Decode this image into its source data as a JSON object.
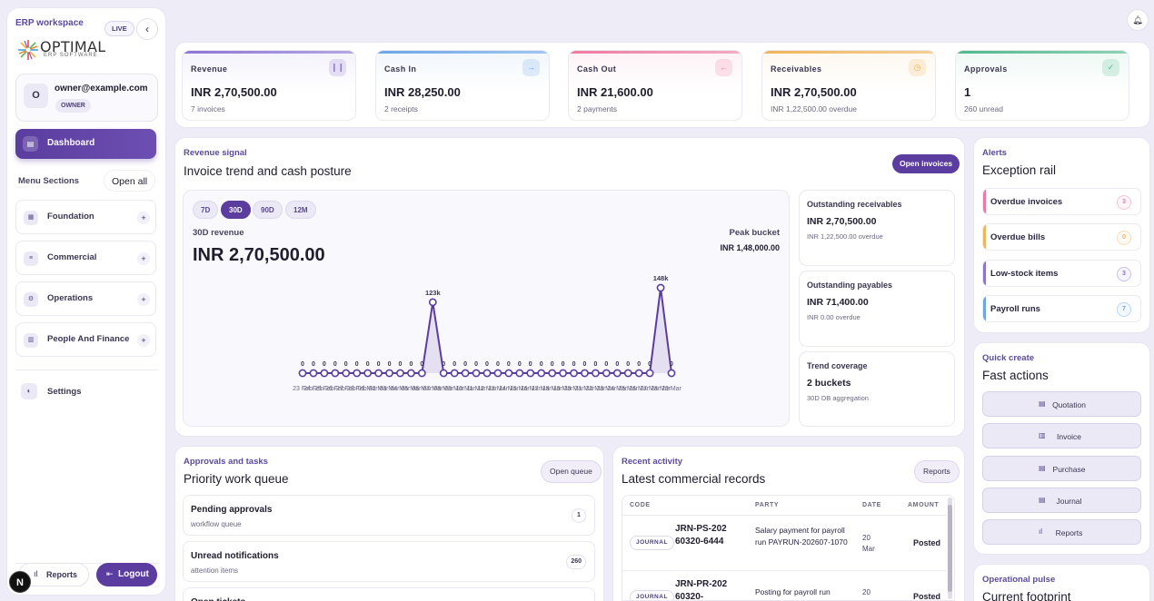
{
  "sidebar": {
    "workspace_label": "ERP workspace",
    "live_badge": "LIVE",
    "logo_text": "OPTIMAL",
    "logo_sub": "ERP SOFTWARE",
    "user": {
      "avatar": "O",
      "email": "owner@example.com",
      "role": "OWNER"
    },
    "active_item": "Dashboard",
    "menu_sections_label": "Menu Sections",
    "open_all_label": "Open all",
    "sections": [
      {
        "label": "Foundation",
        "icon": "grid-icon"
      },
      {
        "label": "Commercial",
        "icon": "list-icon"
      },
      {
        "label": "Operations",
        "icon": "gear-icon"
      },
      {
        "label": "People And Finance",
        "icon": "ledger-icon"
      }
    ],
    "settings_label": "Settings",
    "reports_label": "Reports",
    "logout_label": "Logout",
    "n_badge": "N"
  },
  "kpis": [
    {
      "title": "Revenue",
      "value": "INR 2,70,500.00",
      "sub": "7 invoices",
      "accent": "#8a74d6",
      "icon": "chart-icon",
      "glyph": "❙❙"
    },
    {
      "title": "Cash In",
      "value": "INR 28,250.00",
      "sub": "2 receipts",
      "accent": "#6aa6e8",
      "icon": "arrow-right-icon",
      "glyph": "→"
    },
    {
      "title": "Cash Out",
      "value": "INR 21,600.00",
      "sub": "2 payments",
      "accent": "#ee7aa0",
      "icon": "arrow-left-icon",
      "glyph": "←"
    },
    {
      "title": "Receivables",
      "value": "INR 2,70,500.00",
      "sub": "INR 1,22,500.00 overdue",
      "accent": "#f0b45a",
      "icon": "clock-icon",
      "glyph": "◷"
    },
    {
      "title": "Approvals",
      "value": "1",
      "sub": "260 unread",
      "accent": "#4fb98c",
      "icon": "check-icon",
      "glyph": "✓"
    }
  ],
  "revenue": {
    "eyebrow": "Revenue signal",
    "title": "Invoice trend and cash posture",
    "open_invoices_label": "Open invoices",
    "ranges": [
      "7D",
      "30D",
      "90D",
      "12M"
    ],
    "active_range": "30D",
    "metric_label": "30D revenue",
    "metric_value": "INR 2,70,500.00",
    "peak_label": "Peak bucket",
    "peak_value": "INR 1,48,000.00"
  },
  "chart_data": {
    "type": "line",
    "x": [
      "23 Feb",
      "24 Feb",
      "25 Feb",
      "26 Feb",
      "27 Feb",
      "28 Feb",
      "01 Mar",
      "02 Mar",
      "03 Mar",
      "04 Mar",
      "05 Mar",
      "06 Mar",
      "07 Mar",
      "08 Mar",
      "09 Mar",
      "10 Mar",
      "11 Mar",
      "12 Mar",
      "13 Mar",
      "14 Mar",
      "15 Mar",
      "16 Mar",
      "17 Mar",
      "18 Mar",
      "19 Mar",
      "20 Mar",
      "21 Mar",
      "22 Mar",
      "23 Mar",
      "24 Mar",
      "25 Mar",
      "26 Mar",
      "27 Mar",
      "28 Mar",
      "29 Mar"
    ],
    "x_tick_labels": [
      "23 Feb",
      "24 Feb",
      "25 Feb",
      "26 Feb",
      "27 Feb",
      "28 Feb",
      "01 Mar",
      "02 Mar",
      "03 Mar",
      "04 Mar",
      "05 Mar",
      "06 Mar",
      "07 Mar",
      "08 Mar",
      "09 Mar",
      "10 Mar",
      "11 Mar",
      "12 Mar",
      "13 Mar",
      "14 Mar",
      "15 Mar",
      "16 Mar",
      "17 Mar",
      "18 Mar",
      "19 Mar",
      "20 Mar",
      "21 Mar",
      "22 Mar",
      "23 Mar",
      "24 Mar",
      "25 Mar",
      "26 Mar",
      "27 Mar",
      "28 Mar",
      "29 Mar"
    ],
    "values": [
      0,
      0,
      0,
      0,
      0,
      0,
      0,
      0,
      0,
      0,
      0,
      0,
      123,
      0,
      0,
      0,
      0,
      0,
      0,
      0,
      0,
      0,
      0,
      0,
      0,
      0,
      0,
      0,
      0,
      0,
      0,
      0,
      0,
      148,
      0
    ],
    "value_labels": [
      "0",
      "0",
      "0",
      "0",
      "0",
      "0",
      "0",
      "0",
      "0",
      "0",
      "0",
      "0",
      "123k",
      "0",
      "0",
      "0",
      "0",
      "0",
      "0",
      "0",
      "0",
      "0",
      "0",
      "0",
      "0",
      "0",
      "0",
      "0",
      "0",
      "0",
      "0",
      "0",
      "0",
      "148k",
      "0"
    ],
    "ylim": [
      0,
      148
    ],
    "color": "#5a3d9e",
    "grid": false
  },
  "side_metrics": [
    {
      "title": "Outstanding receivables",
      "value": "INR 2,70,500.00",
      "sub": "INR 1,22,500.00 overdue"
    },
    {
      "title": "Outstanding payables",
      "value": "INR 71,400.00",
      "sub": "INR 0.00 overdue"
    },
    {
      "title": "Trend coverage",
      "value": "2 buckets",
      "sub": "30D DB aggregation"
    }
  ],
  "alerts": {
    "eyebrow": "Alerts",
    "title": "Exception rail",
    "items": [
      {
        "label": "Overdue invoices",
        "count": "3",
        "color": "#ee7aa0"
      },
      {
        "label": "Overdue bills",
        "count": "0",
        "color": "#f0b45a"
      },
      {
        "label": "Low-stock items",
        "count": "3",
        "color": "#8a74d6"
      },
      {
        "label": "Payroll runs",
        "count": "7",
        "color": "#6aa6e8"
      }
    ]
  },
  "quick_create": {
    "eyebrow": "Quick create",
    "title": "Fast actions",
    "items": [
      {
        "label": "Quotation",
        "icon": "quotation-icon"
      },
      {
        "label": "Invoice",
        "icon": "invoice-icon"
      },
      {
        "label": "Purchase",
        "icon": "purchase-icon"
      },
      {
        "label": "Journal",
        "icon": "journal-icon"
      },
      {
        "label": "Reports",
        "icon": "reports-icon"
      }
    ]
  },
  "pulse": {
    "eyebrow": "Operational pulse",
    "title": "Current footprint"
  },
  "approvals": {
    "eyebrow": "Approvals and tasks",
    "title": "Priority work queue",
    "open_queue_label": "Open queue",
    "items": [
      {
        "title": "Pending approvals",
        "sub": "workflow queue",
        "count": "1"
      },
      {
        "title": "Unread notifications",
        "sub": "attention items",
        "count": "260"
      },
      {
        "title": "Open tickets",
        "sub": "",
        "count": ""
      }
    ]
  },
  "activity": {
    "eyebrow": "Recent activity",
    "title": "Latest commercial records",
    "reports_label": "Reports",
    "columns": [
      "CODE",
      "PARTY",
      "DATE",
      "AMOUNT"
    ],
    "rows": [
      {
        "type": "JOURNAL",
        "code": "JRN-PS-20260320-6444",
        "party": "Salary payment for payroll run PAYRUN-202607-1070",
        "date": "20 Mar",
        "amount": "Posted"
      },
      {
        "type": "JOURNAL",
        "code": "JRN-PR-20260320-",
        "party": "Posting for payroll run",
        "date": "20",
        "amount": "Posted"
      }
    ]
  }
}
